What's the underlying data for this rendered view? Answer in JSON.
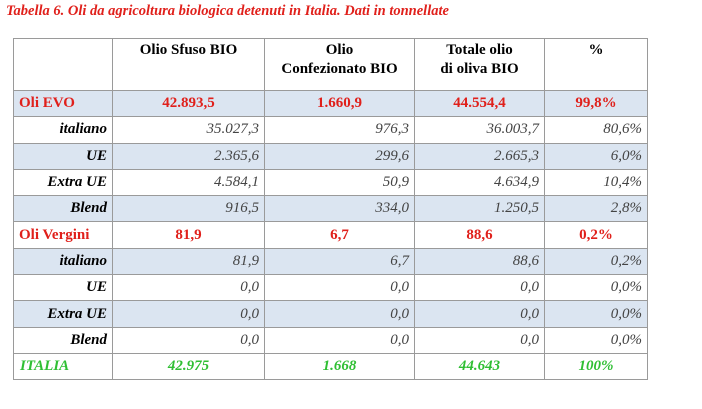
{
  "title": "Tabella 6. Oli da agricoltura biologica detenuti in Italia. Dati in tonnellate",
  "colors": {
    "title": "#e0201b",
    "main_rows": "#e0201b",
    "total_row": "#2fbf33",
    "band": "#dbe5f1"
  },
  "columns": [
    {
      "line1": "Olio Sfuso BIO",
      "line2": ""
    },
    {
      "line1": "Olio",
      "line2": "Confezionato BIO"
    },
    {
      "line1": "Totale olio",
      "line2": "di oliva BIO"
    },
    {
      "line1": "%",
      "line2": ""
    }
  ],
  "rows": [
    {
      "label": "Oli EVO",
      "kind": "main",
      "band": true,
      "values": [
        "42.893,5",
        "1.660,9",
        "44.554,4",
        "99,8%"
      ]
    },
    {
      "label": "italiano",
      "kind": "sub",
      "band": false,
      "values": [
        "35.027,3",
        "976,3",
        "36.003,7",
        "80,6%"
      ]
    },
    {
      "label": "UE",
      "kind": "sub",
      "band": true,
      "values": [
        "2.365,6",
        "299,6",
        "2.665,3",
        "6,0%"
      ]
    },
    {
      "label": "Extra UE",
      "kind": "sub",
      "band": false,
      "values": [
        "4.584,1",
        "50,9",
        "4.634,9",
        "10,4%"
      ]
    },
    {
      "label": "Blend",
      "kind": "sub",
      "band": true,
      "values": [
        "916,5",
        "334,0",
        "1.250,5",
        "2,8%"
      ]
    },
    {
      "label": "Oli Vergini",
      "kind": "main",
      "band": false,
      "values": [
        "81,9",
        "6,7",
        "88,6",
        "0,2%"
      ]
    },
    {
      "label": "italiano",
      "kind": "sub",
      "band": true,
      "values": [
        "81,9",
        "6,7",
        "88,6",
        "0,2%"
      ]
    },
    {
      "label": "UE",
      "kind": "sub",
      "band": false,
      "values": [
        "0,0",
        "0,0",
        "0,0",
        "0,0%"
      ]
    },
    {
      "label": "Extra UE",
      "kind": "sub",
      "band": true,
      "values": [
        "0,0",
        "0,0",
        "0,0",
        "0,0%"
      ]
    },
    {
      "label": "Blend",
      "kind": "sub",
      "band": false,
      "values": [
        "0,0",
        "0,0",
        "0,0",
        "0,0%"
      ]
    },
    {
      "label": "ITALIA",
      "kind": "total",
      "band": true,
      "values": [
        "42.975",
        "1.668",
        "44.643",
        "100%"
      ]
    }
  ]
}
